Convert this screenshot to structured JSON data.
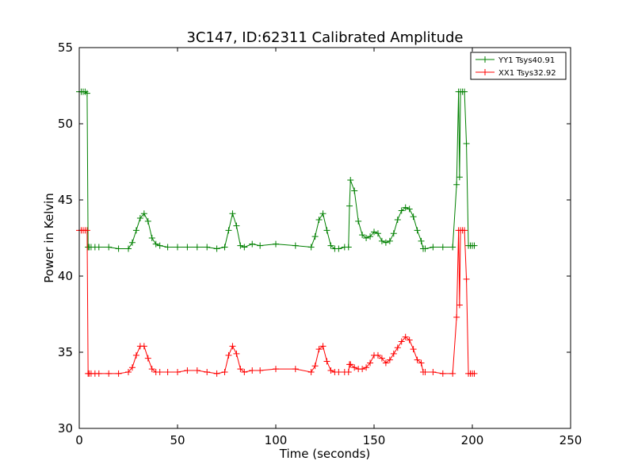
{
  "chart_data": {
    "type": "line",
    "title": "3C147, ID:62311 Calibrated Amplitude",
    "xlabel": "Time (seconds)",
    "ylabel": "Power in Kelvin",
    "xlim": [
      0,
      250
    ],
    "ylim": [
      30,
      55
    ],
    "xticks": [
      0,
      50,
      100,
      150,
      200,
      250
    ],
    "yticks": [
      30,
      35,
      40,
      45,
      50,
      55
    ],
    "grid": false,
    "legend_position": "top-right",
    "marker": "+",
    "series": [
      {
        "name": "YY1 Tsys40.91",
        "color": "#008000",
        "x": [
          0,
          1,
          2,
          3,
          4,
          4.5,
          5,
          6,
          8,
          10,
          15,
          20,
          25,
          27,
          29,
          31,
          33,
          35,
          37,
          39,
          41,
          45,
          50,
          55,
          60,
          65,
          70,
          74,
          76,
          78,
          80,
          82,
          84,
          88,
          92,
          100,
          110,
          118,
          120,
          122,
          124,
          126,
          128,
          130,
          132,
          135,
          137,
          137.5,
          138,
          140,
          142,
          144,
          146,
          148,
          150,
          152,
          154,
          156,
          158,
          160,
          162,
          164,
          166,
          168,
          170,
          172,
          174,
          175,
          176,
          180,
          185,
          190,
          192,
          193,
          193.5,
          194,
          195,
          196,
          197,
          198,
          199,
          200,
          201
        ],
        "y": [
          52.1,
          52.1,
          52.1,
          52.1,
          52.0,
          41.9,
          41.9,
          41.9,
          41.9,
          41.9,
          41.9,
          41.8,
          41.8,
          42.2,
          43.0,
          43.8,
          44.1,
          43.6,
          42.5,
          42.1,
          42.0,
          41.9,
          41.9,
          41.9,
          41.9,
          41.9,
          41.8,
          41.9,
          43.0,
          44.1,
          43.3,
          42.0,
          41.9,
          42.1,
          42.0,
          42.1,
          42.0,
          41.9,
          42.6,
          43.7,
          44.1,
          43.0,
          42.0,
          41.8,
          41.8,
          41.9,
          41.9,
          44.6,
          46.3,
          45.6,
          43.6,
          42.7,
          42.5,
          42.6,
          42.9,
          42.8,
          42.3,
          42.2,
          42.3,
          42.8,
          43.7,
          44.3,
          44.5,
          44.4,
          43.9,
          43.0,
          42.3,
          41.8,
          41.8,
          41.9,
          41.9,
          41.9,
          46.0,
          52.1,
          46.5,
          52.1,
          52.1,
          52.1,
          48.7,
          42.0,
          42.0,
          42.0,
          42.0
        ]
      },
      {
        "name": "XX1 Tsys32.92",
        "color": "#ff0000",
        "x": [
          0,
          1,
          2,
          3,
          4,
          4.5,
          5,
          6,
          8,
          10,
          15,
          20,
          25,
          27,
          29,
          31,
          33,
          35,
          37,
          39,
          41,
          45,
          50,
          55,
          60,
          65,
          70,
          74,
          76,
          78,
          80,
          82,
          84,
          88,
          92,
          100,
          110,
          118,
          120,
          122,
          124,
          126,
          128,
          130,
          132,
          135,
          137,
          137.5,
          138,
          140,
          142,
          144,
          146,
          148,
          150,
          152,
          154,
          156,
          158,
          160,
          162,
          164,
          166,
          168,
          170,
          172,
          174,
          175,
          176,
          180,
          185,
          190,
          192,
          193,
          193.5,
          194,
          195,
          196,
          197,
          198,
          199,
          200,
          201
        ],
        "y": [
          43.0,
          43.0,
          43.0,
          43.0,
          43.0,
          33.6,
          33.6,
          33.6,
          33.6,
          33.6,
          33.6,
          33.6,
          33.7,
          34.0,
          34.8,
          35.4,
          35.4,
          34.6,
          33.9,
          33.7,
          33.7,
          33.7,
          33.7,
          33.8,
          33.8,
          33.7,
          33.6,
          33.7,
          34.8,
          35.4,
          34.9,
          33.9,
          33.7,
          33.8,
          33.8,
          33.9,
          33.9,
          33.7,
          34.1,
          35.2,
          35.4,
          34.4,
          33.8,
          33.7,
          33.7,
          33.7,
          33.7,
          34.2,
          34.2,
          34.0,
          33.9,
          33.9,
          34.0,
          34.3,
          34.8,
          34.8,
          34.6,
          34.3,
          34.5,
          34.9,
          35.3,
          35.7,
          36.0,
          35.8,
          35.2,
          34.5,
          34.3,
          33.7,
          33.7,
          33.7,
          33.6,
          33.6,
          37.3,
          43.0,
          38.1,
          43.0,
          43.0,
          43.0,
          39.8,
          33.6,
          33.6,
          33.6,
          33.6
        ]
      }
    ]
  }
}
